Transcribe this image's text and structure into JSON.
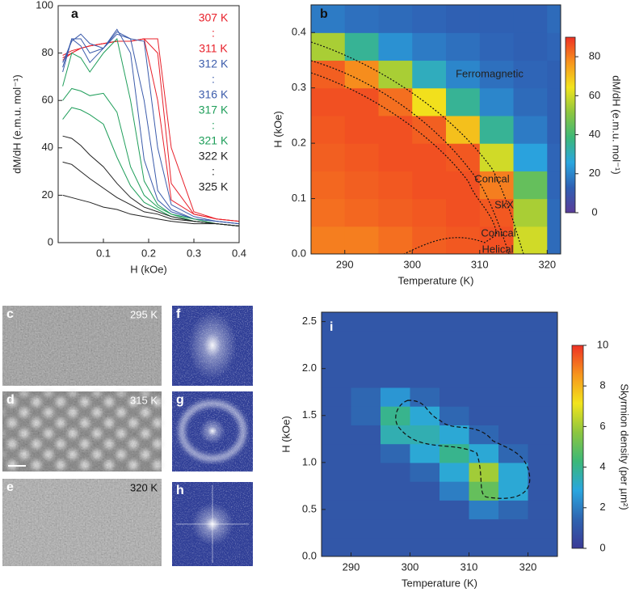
{
  "chart_data": [
    {
      "type": "line",
      "label": "a",
      "xlabel": "H (kOe)",
      "ylabel": "dM/dH (e.m.u. mol⁻¹)",
      "xlim": [
        0,
        0.4
      ],
      "ylim": [
        0,
        100
      ],
      "xticks": [
        0.1,
        0.2,
        0.3,
        0.4
      ],
      "yticks": [
        0,
        20,
        40,
        60,
        80,
        100
      ],
      "x": [
        0.01,
        0.03,
        0.05,
        0.07,
        0.1,
        0.13,
        0.16,
        0.19,
        0.22,
        0.25,
        0.3,
        0.35,
        0.4
      ],
      "series": [
        {
          "color": "#e8202a",
          "values": [
            79,
            81,
            82,
            83,
            84,
            85,
            85,
            86,
            86,
            40,
            13,
            10,
            9
          ]
        },
        {
          "color": "#e8202a",
          "values": [
            78,
            80,
            82,
            83,
            84,
            85,
            85,
            86,
            80,
            25,
            12,
            10,
            9
          ]
        },
        {
          "color": "#e8202a",
          "values": [
            77,
            80,
            82,
            83,
            84,
            85,
            85,
            86,
            60,
            18,
            12,
            10,
            9
          ]
        },
        {
          "color": "#3b5bab",
          "values": [
            76,
            85,
            88,
            84,
            82,
            88,
            86,
            85,
            40,
            16,
            11,
            9,
            8
          ]
        },
        {
          "color": "#3b5bab",
          "values": [
            74,
            86,
            86,
            80,
            82,
            89,
            86,
            60,
            22,
            14,
            10,
            9,
            8
          ]
        },
        {
          "color": "#3b5bab",
          "values": [
            72,
            86,
            83,
            76,
            82,
            90,
            80,
            35,
            18,
            13,
            10,
            9,
            8
          ]
        },
        {
          "color": "#1f9e5a",
          "values": [
            66,
            80,
            78,
            72,
            80,
            86,
            60,
            26,
            16,
            12,
            10,
            8,
            7
          ]
        },
        {
          "color": "#1f9e5a",
          "values": [
            60,
            65,
            64,
            62,
            63,
            55,
            32,
            20,
            15,
            12,
            9,
            8,
            7
          ]
        },
        {
          "color": "#1f9e5a",
          "values": [
            52,
            57,
            56,
            54,
            50,
            36,
            24,
            17,
            14,
            11,
            9,
            8,
            7
          ]
        },
        {
          "color": "#222222",
          "values": [
            45,
            44,
            41,
            37,
            32,
            25,
            19,
            15,
            13,
            11,
            9,
            8,
            7
          ]
        },
        {
          "color": "#222222",
          "values": [
            34,
            33,
            30,
            27,
            23,
            19,
            16,
            13,
            12,
            10,
            9,
            8,
            7
          ]
        },
        {
          "color": "#222222",
          "values": [
            20,
            19,
            18,
            17,
            15,
            14,
            12,
            11,
            10,
            9,
            8,
            8,
            7
          ]
        }
      ],
      "legend": [
        {
          "text": "307 K",
          "color": "#e8202a"
        },
        {
          "text": ":",
          "color": "#e8202a"
        },
        {
          "text": "311 K",
          "color": "#e8202a"
        },
        {
          "text": "312 K",
          "color": "#3b5bab"
        },
        {
          "text": ":",
          "color": "#3b5bab"
        },
        {
          "text": "316 K",
          "color": "#3b5bab"
        },
        {
          "text": "317 K",
          "color": "#1f9e5a"
        },
        {
          "text": ":",
          "color": "#1f9e5a"
        },
        {
          "text": "321 K",
          "color": "#1f9e5a"
        },
        {
          "text": "322 K",
          "color": "#222222"
        },
        {
          "text": ":",
          "color": "#222222"
        },
        {
          "text": "325 K",
          "color": "#222222"
        }
      ]
    },
    {
      "type": "heatmap",
      "label": "b",
      "xlabel": "Temperature (K)",
      "ylabel": "H (kOe)",
      "xlim": [
        285,
        322
      ],
      "ylim": [
        0,
        0.45
      ],
      "xticks": [
        290,
        300,
        310,
        320
      ],
      "yticks": [
        {
          "value": 0,
          "label": "0.0"
        },
        0.1,
        0.2,
        0.3,
        0.4
      ],
      "x": [
        287.5,
        292.5,
        297.5,
        302.5,
        307.5,
        312.5,
        317.5,
        322.5
      ],
      "y": [
        0.025,
        0.075,
        0.125,
        0.175,
        0.225,
        0.275,
        0.325,
        0.375,
        0.425
      ],
      "z": [
        [
          80,
          80,
          82,
          84,
          85,
          86,
          60,
          15
        ],
        [
          82,
          83,
          84,
          85,
          86,
          85,
          55,
          15
        ],
        [
          83,
          84,
          85,
          86,
          86,
          80,
          45,
          14
        ],
        [
          84,
          85,
          86,
          86,
          85,
          60,
          25,
          14
        ],
        [
          85,
          86,
          86,
          84,
          70,
          35,
          18,
          13
        ],
        [
          86,
          86,
          82,
          65,
          35,
          20,
          15,
          13
        ],
        [
          84,
          78,
          55,
          30,
          20,
          16,
          14,
          13
        ],
        [
          55,
          35,
          22,
          18,
          16,
          14,
          13,
          14
        ],
        [
          18,
          16,
          15,
          14,
          13,
          13,
          13,
          15
        ]
      ],
      "colormap": [
        "#5a3d99",
        "#2f5fb3",
        "#2aa6df",
        "#3cb878",
        "#8dc63f",
        "#f2e41c",
        "#f7941d",
        "#ee3124"
      ],
      "colorbar": {
        "label": "dM/dH (e.m.u. mol⁻¹)",
        "lim": [
          0,
          90
        ],
        "ticks": [
          0,
          20,
          40,
          60,
          80
        ]
      },
      "annotations": [
        "Ferromagnetic",
        "Conical",
        "SkX",
        "Conical",
        "Helical"
      ]
    },
    {
      "type": "heatmap",
      "label": "i",
      "xlabel": "Temperature (K)",
      "ylabel": "H (kOe)",
      "xlim": [
        285,
        325
      ],
      "ylim": [
        0,
        2.6
      ],
      "xticks": [
        290,
        300,
        310,
        320
      ],
      "yticks": [
        {
          "value": 0,
          "label": "0.0"
        },
        0.5,
        {
          "value": 1,
          "label": "1.0"
        },
        1.5,
        {
          "value": 2,
          "label": "2.0"
        },
        2.5
      ],
      "x": [
        287.5,
        292.5,
        297.5,
        302.5,
        307.5,
        312.5,
        317.5,
        322.5
      ],
      "y": [
        0.1,
        0.3,
        0.5,
        0.7,
        0.9,
        1.1,
        1.3,
        1.5,
        1.7,
        1.9,
        2.1,
        2.3,
        2.5
      ],
      "z": [
        [
          1,
          1,
          1,
          1,
          1,
          1,
          1,
          1
        ],
        [
          1,
          1,
          1,
          1,
          1,
          1,
          1,
          1
        ],
        [
          1,
          1,
          1,
          1,
          1,
          2,
          1.5,
          1
        ],
        [
          1,
          1,
          1,
          1,
          2,
          5,
          3,
          1
        ],
        [
          1,
          1,
          1,
          1.5,
          3,
          6,
          3,
          1
        ],
        [
          1,
          1,
          1.5,
          3,
          4,
          3,
          1.5,
          1
        ],
        [
          1,
          1,
          3.5,
          3.5,
          3,
          1.5,
          1,
          1
        ],
        [
          1,
          1.5,
          4,
          3,
          1.5,
          1,
          1,
          1
        ],
        [
          1,
          1.5,
          2.5,
          1.5,
          1,
          1,
          1,
          1
        ],
        [
          1,
          1,
          1,
          1,
          1,
          1,
          1,
          1
        ],
        [
          1,
          1,
          1,
          1,
          1,
          1,
          1,
          1
        ],
        [
          1,
          1,
          1,
          1,
          1,
          1,
          1,
          1
        ],
        [
          1,
          1,
          1,
          1,
          1,
          1,
          1,
          1
        ]
      ],
      "colormap": [
        "#3a3a96",
        "#2f64b0",
        "#2aa6df",
        "#3cb878",
        "#8dc63f",
        "#f2e41c",
        "#f7941d",
        "#ee3124"
      ],
      "colorbar": {
        "label": "Skyrmion density (per µm²)",
        "lim": [
          0,
          10
        ],
        "ticks": [
          0,
          2,
          4,
          6,
          8,
          10
        ]
      }
    }
  ],
  "images": [
    {
      "label": "c",
      "temperature": "295 K"
    },
    {
      "label": "d",
      "temperature": "315 K"
    },
    {
      "label": "e",
      "temperature": "320 K"
    },
    {
      "label": "f"
    },
    {
      "label": "g"
    },
    {
      "label": "h"
    }
  ]
}
